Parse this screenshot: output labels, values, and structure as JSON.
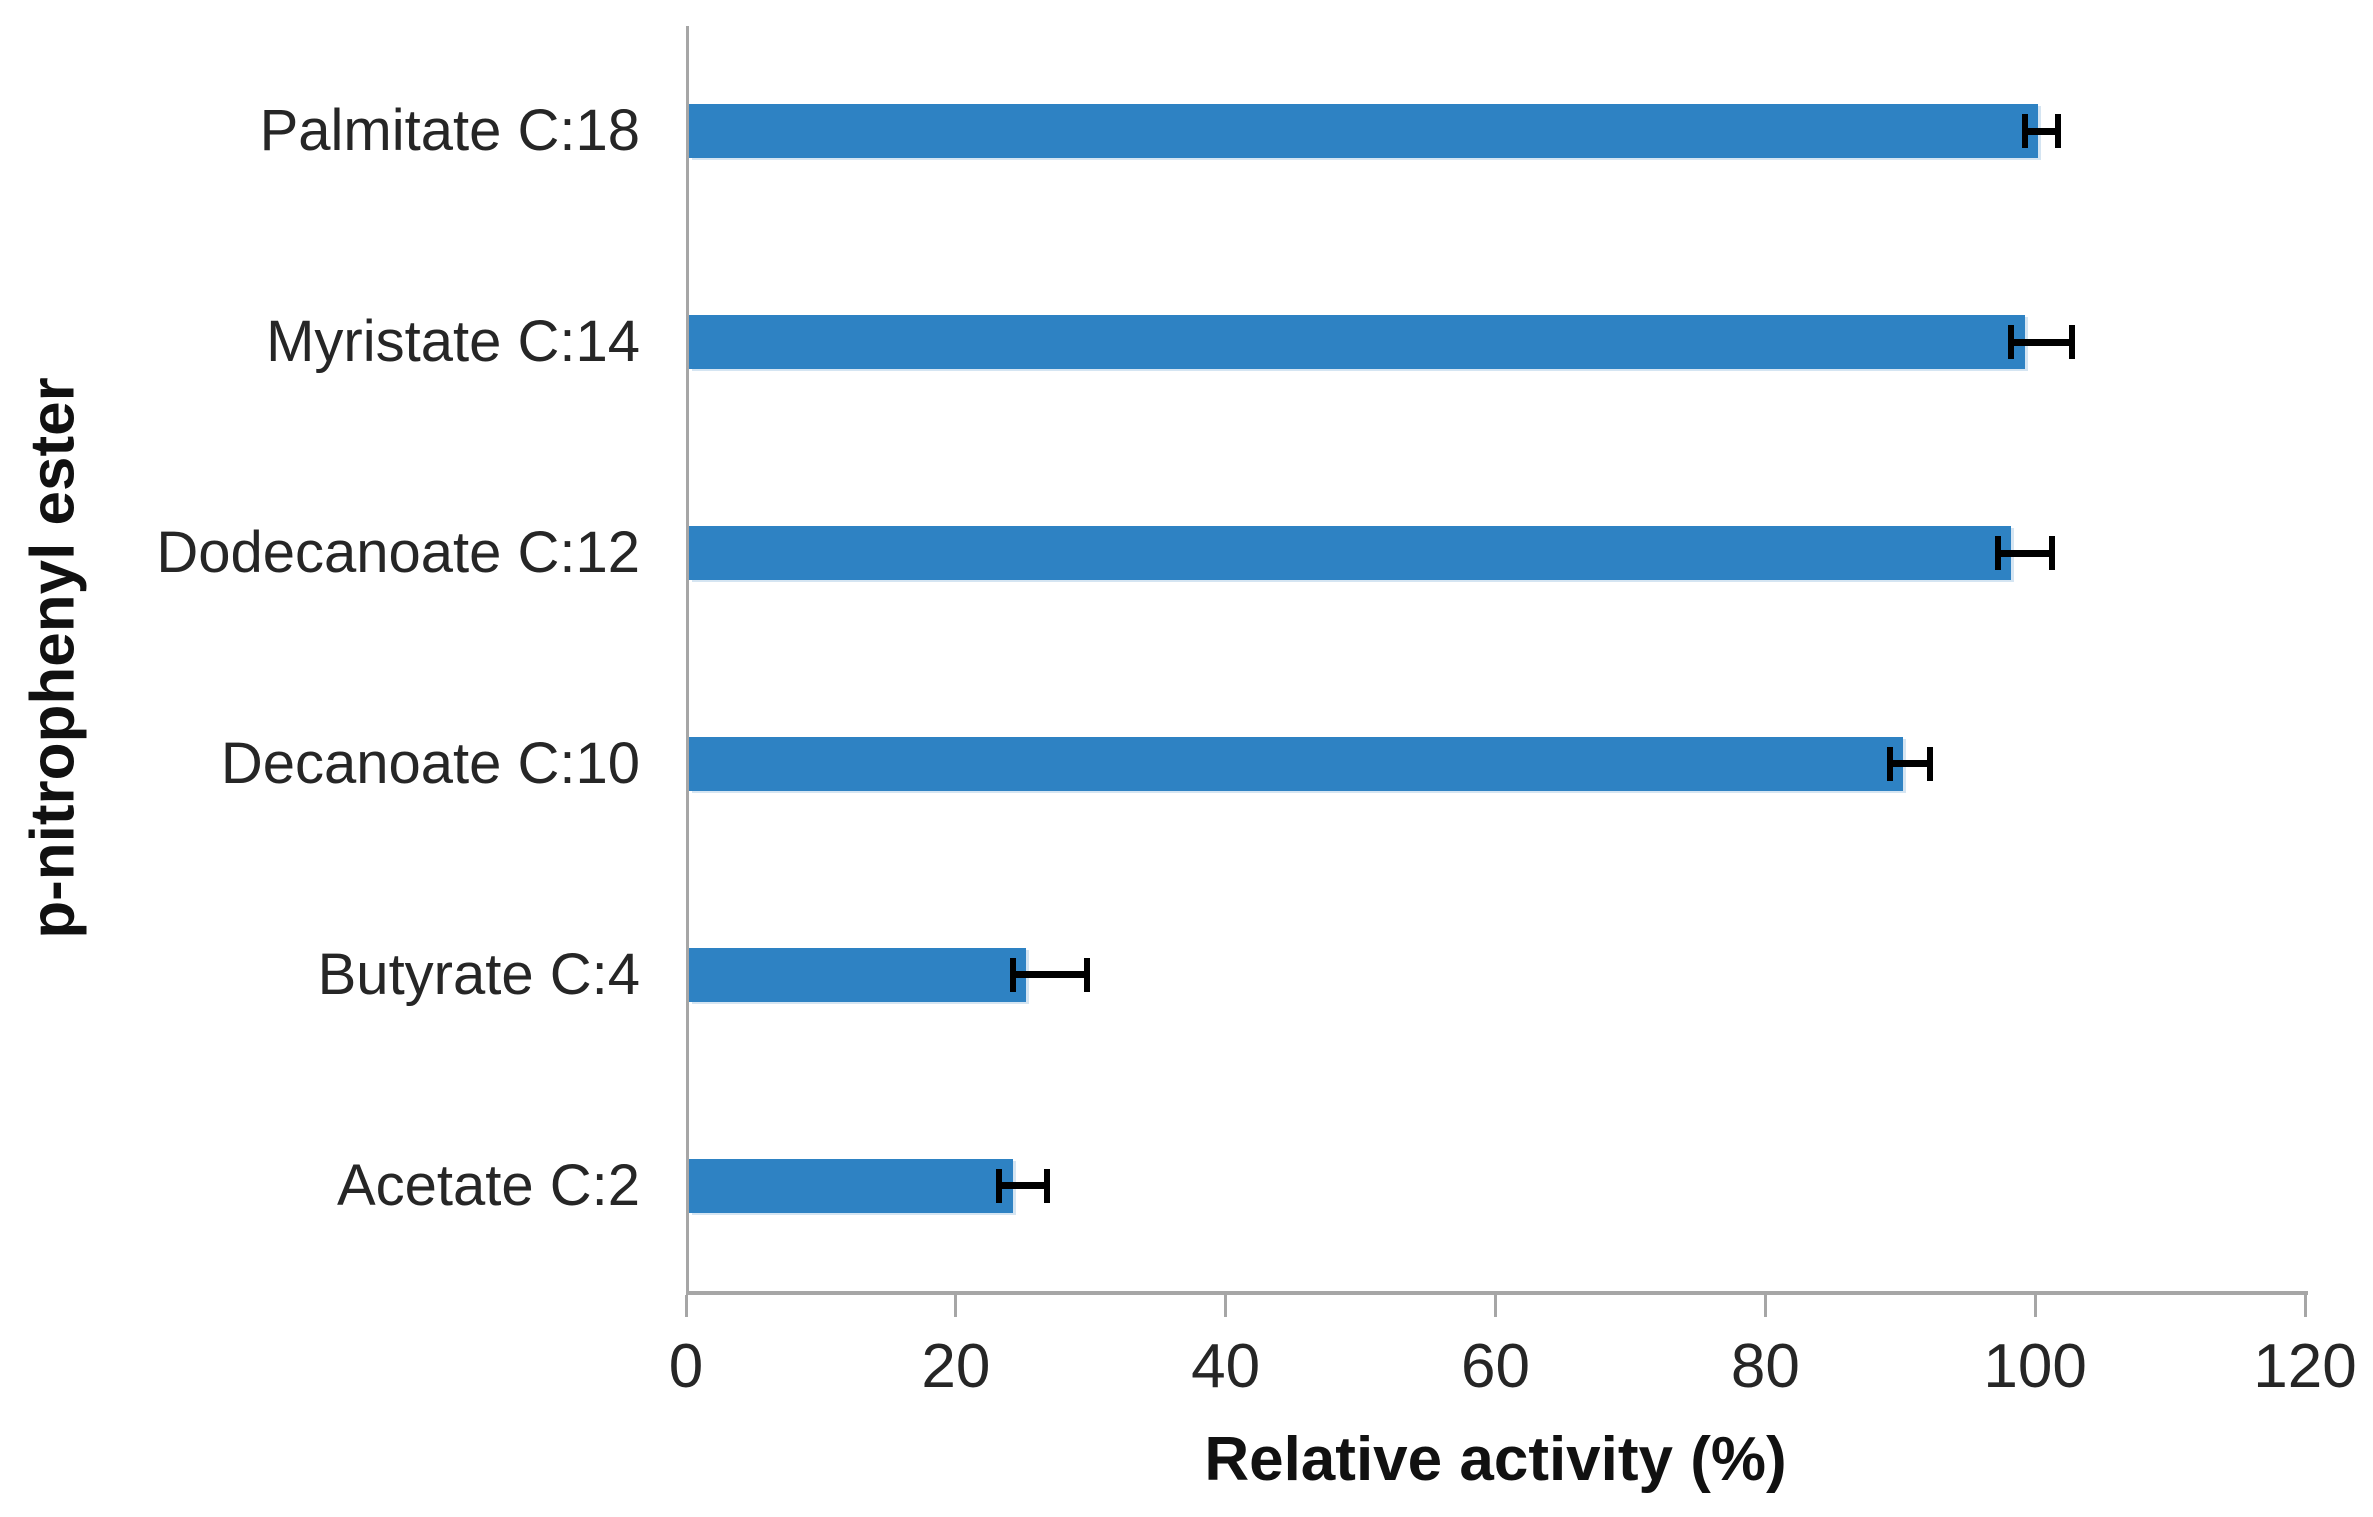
{
  "chart_data": {
    "type": "bar",
    "orientation": "horizontal",
    "title": "",
    "xlabel": "Relative activity (%)",
    "ylabel": "p-nitrophenyl ester",
    "categories": [
      "Palmitate C:18",
      "Myristate C:14",
      "Dodecanoate C:12",
      "Decanoate C:10",
      "Butyrate C:4",
      "Acetate C:2"
    ],
    "values": [
      100,
      99,
      98,
      90,
      25,
      24
    ],
    "error_whisker_low": [
      99,
      98,
      97,
      89,
      24,
      23
    ],
    "error_whisker_high": [
      101.5,
      102.5,
      101,
      92,
      29.5,
      26.5
    ],
    "xlim": [
      0,
      120
    ],
    "xticks": [
      0,
      20,
      40,
      60,
      80,
      100,
      120
    ],
    "grid": "off",
    "legend": "none",
    "bar_color": "#2E82C3",
    "bar_edge_color": "#D5E5F2",
    "axis_color": "#A6A6A6",
    "error_bar_color": "#000000",
    "tick_label_color": "#262626"
  }
}
